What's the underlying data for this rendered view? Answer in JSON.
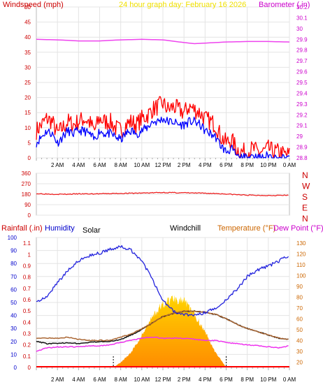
{
  "chart_data": [
    {
      "type": "line",
      "panel": "wind-barometer",
      "title": "24 hour graph day:  February 16 2026",
      "ylabel_left": "Windspeed (mph)",
      "ylabel_right": "Barometer (.in)",
      "x_ticks": [
        "2 AM",
        "4 AM",
        "6 AM",
        "8 AM",
        "10 AM",
        "12 PM",
        "2 PM",
        "4 PM",
        "6 PM",
        "8 PM",
        "10 PM",
        "0 AM"
      ],
      "x_hours": [
        0,
        2,
        4,
        6,
        8,
        10,
        12,
        14,
        16,
        18,
        20,
        22,
        24
      ],
      "left_ylim": [
        0,
        50
      ],
      "left_ticks": [
        "0",
        "5",
        "10",
        "15",
        "20",
        "25",
        "30",
        "35",
        "40",
        "45",
        "50"
      ],
      "right_ylim": [
        28.8,
        30.2
      ],
      "right_ticks": [
        "28.8",
        "28.9",
        "29",
        "29.1",
        "29.2",
        "29.3",
        "29.4",
        "29.5",
        "29.6",
        "29.7",
        "29.8",
        "29.9",
        "30",
        "30.1",
        "30.2"
      ],
      "grid": true,
      "colors": {
        "gust": "#ff0000",
        "avg": "#0000ff",
        "barometer": "#ee44ee",
        "left_axis": "#cc0000",
        "right_axis": "#cc00cc",
        "title": "#f0e000"
      },
      "series": [
        {
          "role": "gust",
          "x": [
            0,
            0.5,
            1,
            1.5,
            2,
            2.5,
            3,
            3.5,
            4,
            4.5,
            5,
            5.5,
            6,
            6.5,
            7,
            7.5,
            8,
            8.5,
            9,
            9.5,
            10,
            10.5,
            11,
            11.5,
            12,
            12.5,
            13,
            13.5,
            14,
            14.5,
            15,
            15.5,
            16,
            16.5,
            17,
            17.5,
            18,
            18.5,
            19,
            19.5,
            20,
            20.5,
            21,
            21.5,
            22,
            22.5,
            23,
            23.5,
            24
          ],
          "values": [
            9,
            11,
            13,
            12,
            8,
            10,
            12,
            11,
            12,
            13,
            12,
            9,
            13,
            12,
            12,
            10,
            9,
            11,
            12,
            11,
            13,
            14,
            16,
            17,
            18,
            16,
            17,
            16,
            15,
            17,
            16,
            15,
            13,
            12,
            11,
            7,
            5,
            6,
            3,
            2,
            2,
            3,
            2,
            2,
            3,
            2,
            2,
            1,
            1
          ]
        },
        {
          "role": "avg",
          "x": [
            0,
            0.5,
            1,
            1.5,
            2,
            2.5,
            3,
            3.5,
            4,
            4.5,
            5,
            5.5,
            6,
            6.5,
            7,
            7.5,
            8,
            8.5,
            9,
            9.5,
            10,
            10.5,
            11,
            11.5,
            12,
            12.5,
            13,
            13.5,
            14,
            14.5,
            15,
            15.5,
            16,
            16.5,
            17,
            17.5,
            18,
            18.5,
            19,
            19.5,
            20,
            20.5,
            21,
            21.5,
            22,
            22.5,
            23,
            23.5,
            24
          ],
          "values": [
            5,
            7,
            9,
            8,
            5,
            7,
            9,
            8,
            9,
            9,
            8,
            6,
            9,
            8,
            8,
            7,
            6,
            8,
            9,
            8,
            9,
            10,
            12,
            12,
            13,
            12,
            12,
            11,
            11,
            12,
            12,
            11,
            9,
            8,
            7,
            4,
            2,
            3,
            1,
            0,
            0,
            1,
            0,
            0,
            1,
            0,
            0,
            0,
            0
          ]
        },
        {
          "role": "barometer",
          "x": [
            0,
            2,
            4,
            6,
            8,
            10,
            12,
            14,
            15,
            16,
            18,
            20,
            22,
            24
          ],
          "values": [
            29.9,
            29.895,
            29.885,
            29.885,
            29.895,
            29.9,
            29.895,
            29.87,
            29.86,
            29.865,
            29.875,
            29.88,
            29.88,
            29.875
          ]
        }
      ]
    },
    {
      "type": "line",
      "panel": "wind-direction",
      "ylim": [
        0,
        360
      ],
      "left_ticks": [
        "0",
        "90",
        "180",
        "270",
        "360"
      ],
      "compass": [
        "N",
        "W",
        "S",
        "E",
        "N"
      ],
      "color": "#ee2222",
      "x": [
        0,
        1,
        2,
        3,
        4,
        5,
        6,
        7,
        8,
        9,
        10,
        11,
        12,
        13,
        14,
        15,
        16,
        17,
        18,
        19,
        20,
        21,
        22,
        23,
        24
      ],
      "values": [
        185,
        182,
        180,
        180,
        183,
        182,
        183,
        185,
        187,
        188,
        190,
        192,
        195,
        193,
        192,
        190,
        188,
        186,
        182,
        176,
        172,
        170,
        170,
        170,
        170
      ]
    },
    {
      "type": "line",
      "panel": "temperature-humidity",
      "labels": {
        "rainfall": "Rainfall (.in)",
        "humidity": "Humidity",
        "solar": "Solar",
        "windchill": "Windchill",
        "temperature": "Temperature (°F)",
        "dewpoint": "Dew Point (°F)"
      },
      "humidity_ticks": [
        "0",
        "10",
        "20",
        "30",
        "40",
        "50",
        "60",
        "70",
        "80",
        "90",
        "100"
      ],
      "rain_ticks": [
        "0",
        "0.1",
        "0.2",
        "0.3",
        "0.4",
        "0.5",
        "0.6",
        "0.7",
        "0.8",
        "0.9",
        "1",
        "1.1"
      ],
      "temp_ticks": [
        "20",
        "30",
        "40",
        "50",
        "60",
        "70",
        "80",
        "90",
        "100",
        "110",
        "120",
        "130"
      ],
      "temp_ylim": [
        15,
        135
      ],
      "humidity_ylim": [
        0,
        100
      ],
      "x_ticks": [
        "2 AM",
        "4 AM",
        "6 AM",
        "8 AM",
        "10 AM",
        "12 PM",
        "2 PM",
        "4 PM",
        "6 PM",
        "8 PM",
        "10 PM",
        "0 AM"
      ],
      "sunrise_hour": 7.3,
      "sunset_hour": 18.0,
      "colors": {
        "humidity": "#2222dd",
        "temperature": "#aa6633",
        "windchill": "#111111",
        "dewpoint": "#ee33ee",
        "solar_top": "#ffd400",
        "solar_bottom": "#ff8c00",
        "rain": "#ff0000",
        "rain_axis": "#cc0000",
        "humidity_axis": "#0000cc",
        "temp_axis": "#cc6600"
      },
      "series": [
        {
          "role": "humidity",
          "x": [
            0,
            1,
            2,
            3,
            4,
            5,
            6,
            7,
            8,
            9,
            10,
            11,
            12,
            13,
            14,
            15,
            16,
            17,
            18,
            19,
            20,
            21,
            22,
            23,
            24
          ],
          "values": [
            50,
            55,
            65,
            75,
            82,
            86,
            88,
            91,
            93,
            90,
            82,
            68,
            52,
            43,
            41,
            40,
            42,
            46,
            52,
            60,
            70,
            75,
            78,
            82,
            86
          ]
        },
        {
          "role": "temperature",
          "x": [
            0,
            1,
            2,
            3,
            4,
            5,
            6,
            7,
            8,
            9,
            10,
            11,
            12,
            13,
            14,
            15,
            16,
            17,
            18,
            19,
            20,
            21,
            22,
            23,
            24
          ],
          "values": [
            42,
            42,
            42,
            43,
            41,
            40,
            40,
            40,
            43,
            46,
            51,
            56,
            62,
            65,
            67,
            67,
            66,
            64,
            60,
            55,
            51,
            48,
            45,
            42,
            41
          ]
        },
        {
          "role": "windchill",
          "x": [
            0,
            1,
            2,
            3,
            4,
            5,
            6,
            7,
            8,
            9,
            10,
            11,
            12,
            13,
            14,
            15,
            16,
            17,
            18,
            19,
            20,
            21,
            22,
            23,
            24
          ],
          "values": [
            39,
            37,
            37,
            38,
            37,
            38,
            39,
            39,
            41,
            45,
            50,
            56,
            62,
            65,
            67,
            67,
            66,
            64,
            60,
            55,
            51,
            48,
            45,
            42,
            41
          ]
        },
        {
          "role": "dewpoint",
          "x": [
            0,
            1,
            2,
            3,
            4,
            5,
            6,
            7,
            8,
            9,
            10,
            11,
            12,
            13,
            14,
            15,
            16,
            17,
            18,
            19,
            20,
            21,
            22,
            23,
            24
          ],
          "values": [
            30,
            33,
            34,
            34,
            34,
            35,
            35,
            36,
            38,
            40,
            42,
            43,
            42,
            42,
            42,
            41,
            40,
            40,
            38,
            37,
            36,
            35,
            34,
            33,
            35
          ]
        },
        {
          "role": "solar",
          "x": [
            7.3,
            8,
            9,
            10,
            11,
            12,
            13,
            14,
            15,
            16,
            17,
            18
          ],
          "values": [
            0,
            4,
            12,
            25,
            40,
            50,
            55,
            52,
            42,
            28,
            12,
            0
          ]
        },
        {
          "role": "rainfall",
          "x": [
            0,
            24
          ],
          "values": [
            0,
            0
          ]
        }
      ]
    }
  ]
}
